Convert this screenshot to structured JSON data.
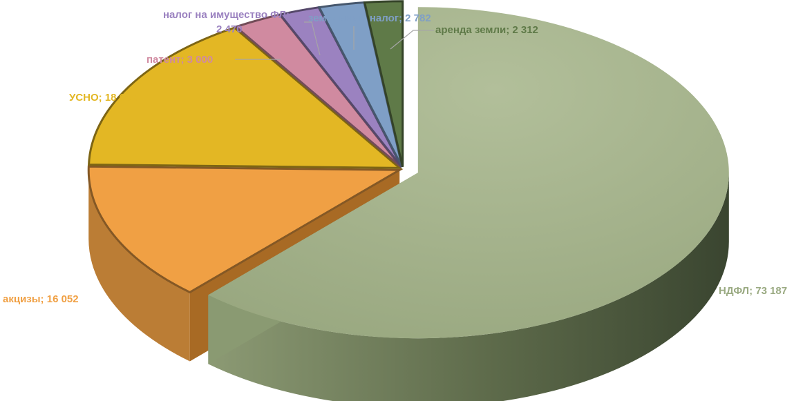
{
  "chart_data": {
    "type": "pie",
    "title": "",
    "style": "3d-exploded",
    "legend": "none",
    "slices": [
      {
        "name": "НДФЛ",
        "value": 73187,
        "label": "НДФЛ; 73 187",
        "color": "#a3b18a",
        "label_color": "#9aaa82"
      },
      {
        "name": "акцизы",
        "value": 16052,
        "label": "акцизы; 16 052",
        "color": "#f0a044",
        "label_color": "#f0a044"
      },
      {
        "name": "УСНО",
        "value": 18662,
        "label": "УСНО; 18 662",
        "color": "#e3b724",
        "label_color": "#e3b724"
      },
      {
        "name": "патент",
        "value": 3000,
        "label": "патент; 3 000",
        "color": "#d08aa0",
        "label_color": "#d08aa0"
      },
      {
        "name": "налог на имущество ФЛ",
        "value": 2470,
        "label_line1": "налог на имущество ФЛ;",
        "label_line2": "2 470",
        "color": "#9b82c0",
        "label_color": "#9b82c0"
      },
      {
        "name": "земельный налог",
        "value": 2782,
        "label": "земельный налог; 2 782",
        "color": "#7f9fc6",
        "label_color": "#7f9fc6"
      },
      {
        "name": "аренда земли",
        "value": 2312,
        "label": "аренда земли; 2 312",
        "color": "#5f7a48",
        "label_color": "#5f7a48"
      }
    ]
  }
}
